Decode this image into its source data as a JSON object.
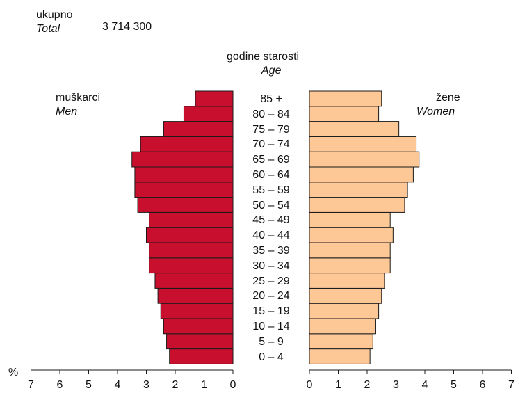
{
  "header": {
    "total_label": "ukupno",
    "total_label_en": "Total",
    "total_value": "3 714 300"
  },
  "age_title": "godine starosti",
  "age_title_en": "Age",
  "men_label": "muškarci",
  "men_label_en": "Men",
  "women_label": "žene",
  "women_label_en": "Women",
  "percent_symbol": "%",
  "colors": {
    "men": "#c8102e",
    "women": "#fdc896",
    "stroke": "#1a1a1a"
  },
  "chart_data": {
    "type": "bar",
    "orientation": "horizontal",
    "subtype": "population-pyramid",
    "categories": [
      "0 – 4",
      "5 – 9",
      "10 – 14",
      "15 – 19",
      "20 – 24",
      "25 – 29",
      "30 – 34",
      "35 – 39",
      "40 – 44",
      "45 – 49",
      "50 – 54",
      "55 – 59",
      "60 – 64",
      "65 – 69",
      "70 – 74",
      "75 – 79",
      "80 – 84",
      "85 +"
    ],
    "series": [
      {
        "name": "muškarci / Men",
        "values": [
          2.2,
          2.3,
          2.4,
          2.5,
          2.6,
          2.7,
          2.9,
          2.9,
          3.0,
          2.9,
          3.3,
          3.4,
          3.4,
          3.5,
          3.2,
          2.4,
          1.7,
          1.3
        ]
      },
      {
        "name": "žene / Women",
        "values": [
          2.1,
          2.2,
          2.3,
          2.4,
          2.5,
          2.6,
          2.8,
          2.8,
          2.9,
          2.8,
          3.3,
          3.4,
          3.6,
          3.8,
          3.7,
          3.1,
          2.4,
          2.5
        ]
      }
    ],
    "xlim": [
      0,
      7
    ],
    "xticks": [
      "0",
      "1",
      "2",
      "3",
      "4",
      "5",
      "6",
      "7"
    ],
    "xlabel": "%"
  }
}
